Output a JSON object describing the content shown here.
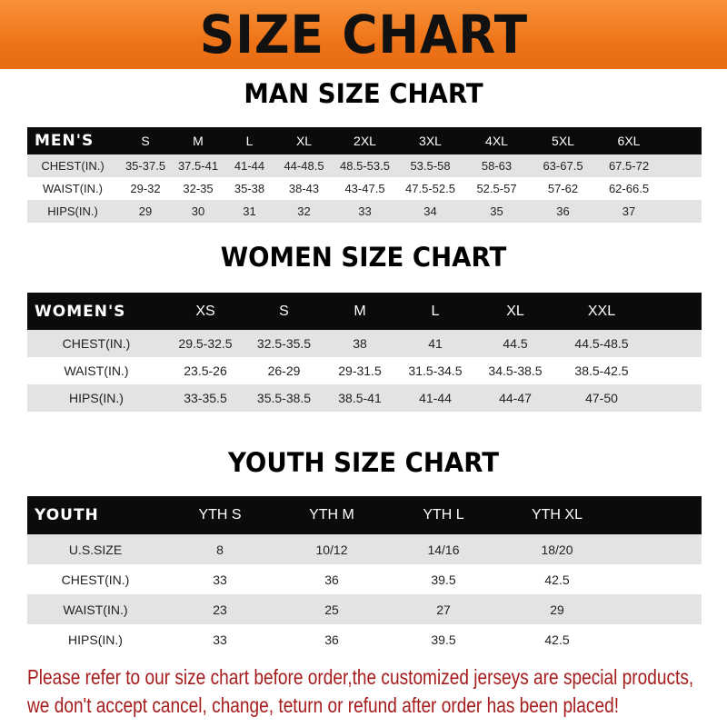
{
  "banner_title": "SIZE CHART",
  "men": {
    "title": "MAN SIZE CHART",
    "header": [
      "MEN'S",
      "S",
      "M",
      "L",
      "XL",
      "2XL",
      "3XL",
      "4XL",
      "5XL",
      "6XL"
    ],
    "rows": [
      [
        "CHEST(IN.)",
        "35-37.5",
        "37.5-41",
        "41-44",
        "44-48.5",
        "48.5-53.5",
        "53.5-58",
        "58-63",
        "63-67.5",
        "67.5-72"
      ],
      [
        "WAIST(IN.)",
        "29-32",
        "32-35",
        "35-38",
        "38-43",
        "43-47.5",
        "47.5-52.5",
        "52.5-57",
        "57-62",
        "62-66.5"
      ],
      [
        "HIPS(IN.)",
        "29",
        "30",
        "31",
        "32",
        "33",
        "34",
        "35",
        "36",
        "37"
      ]
    ]
  },
  "women": {
    "title": "WOMEN SIZE CHART",
    "header": [
      "WOMEN'S",
      "XS",
      "S",
      "M",
      "L",
      "XL",
      "XXL"
    ],
    "rows": [
      [
        "CHEST(IN.)",
        "29.5-32.5",
        "32.5-35.5",
        "38",
        "41",
        "44.5",
        "44.5-48.5"
      ],
      [
        "WAIST(IN.)",
        "23.5-26",
        "26-29",
        "29-31.5",
        "31.5-34.5",
        "34.5-38.5",
        "38.5-42.5"
      ],
      [
        "HIPS(IN.)",
        "33-35.5",
        "35.5-38.5",
        "38.5-41",
        "41-44",
        "44-47",
        "47-50"
      ]
    ]
  },
  "youth": {
    "title": "YOUTH SIZE CHART",
    "header": [
      "YOUTH",
      "YTH S",
      "YTH M",
      "YTH L",
      "YTH XL"
    ],
    "rows": [
      [
        "U.S.SIZE",
        "8",
        "10/12",
        "14/16",
        "18/20"
      ],
      [
        "CHEST(IN.)",
        "33",
        "36",
        "39.5",
        "42.5"
      ],
      [
        "WAIST(IN.)",
        "23",
        "25",
        "27",
        "29"
      ],
      [
        "HIPS(IN.)",
        "33",
        "36",
        "39.5",
        "42.5"
      ]
    ]
  },
  "note": {
    "line1": "Please refer to our size chart before order,the customized jerseys are special products,",
    "line2": "we don't accept cancel, change, teturn or refund after order has been placed!"
  },
  "colors": {
    "banner": "#ef7418",
    "header_row": "#0b0b0b",
    "stripe": "#e3e3e3",
    "note_text": "#a61c1c"
  }
}
